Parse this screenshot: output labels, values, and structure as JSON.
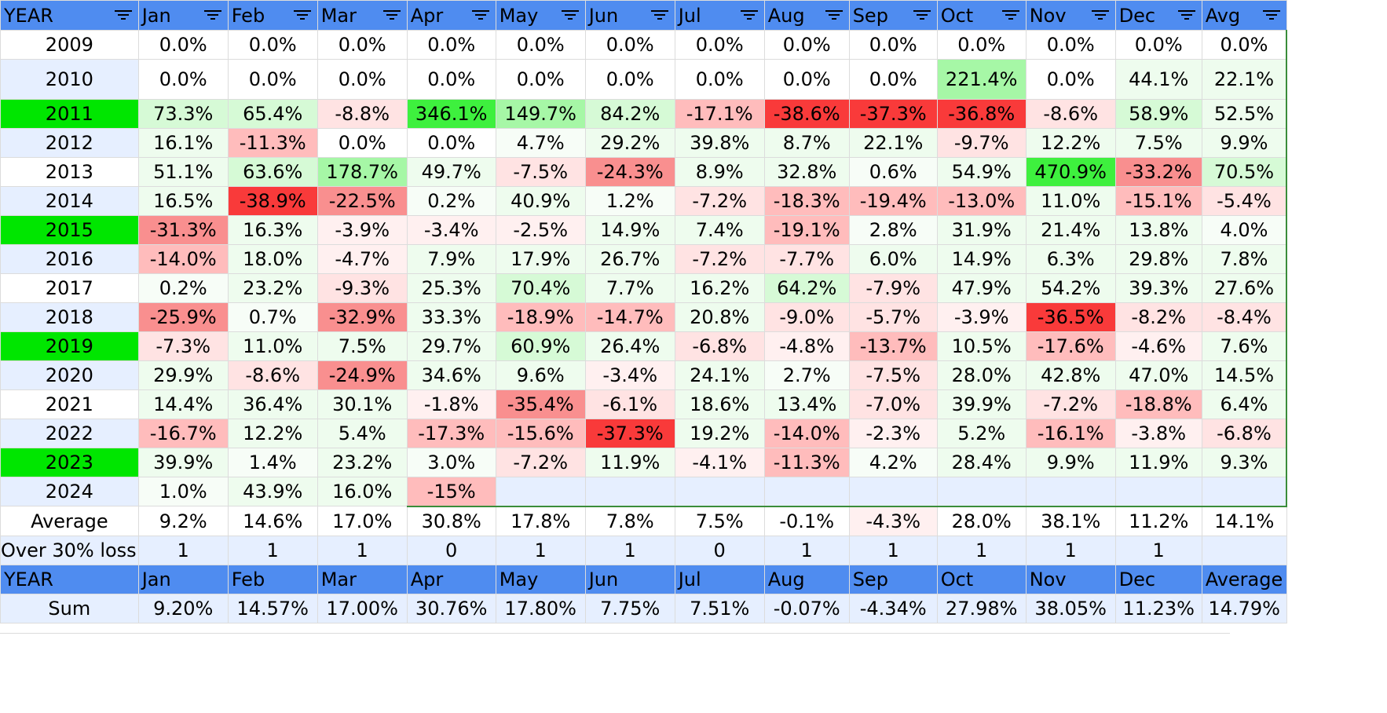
{
  "sheet": {
    "header": [
      "YEAR",
      "Jan",
      "Feb",
      "Mar",
      "Apr",
      "May",
      "Jun",
      "Jul",
      "Aug",
      "Sep",
      "Oct",
      "Nov",
      "Dec",
      "Avg"
    ],
    "rows": [
      {
        "year": "2009",
        "highlight": "none",
        "cells": [
          "0.0%",
          "0.0%",
          "0.0%",
          "0.0%",
          "0.0%",
          "0.0%",
          "0.0%",
          "0.0%",
          "0.0%",
          "0.0%",
          "0.0%",
          "0.0%",
          "0.0%"
        ]
      },
      {
        "year": "2010",
        "highlight": "band",
        "cells": [
          "0.0%",
          "0.0%",
          "0.0%",
          "0.0%",
          "0.0%",
          "0.0%",
          "0.0%",
          "0.0%",
          "0.0%",
          "221.4%",
          "0.0%",
          "44.1%",
          "22.1%"
        ]
      },
      {
        "year": "2011",
        "highlight": "green",
        "cells": [
          "73.3%",
          "65.4%",
          "-8.8%",
          "346.1%",
          "149.7%",
          "84.2%",
          "-17.1%",
          "-38.6%",
          "-37.3%",
          "-36.8%",
          "-8.6%",
          "58.9%",
          "52.5%"
        ]
      },
      {
        "year": "2012",
        "highlight": "band",
        "cells": [
          "16.1%",
          "-11.3%",
          "0.0%",
          "0.0%",
          "4.7%",
          "29.2%",
          "39.8%",
          "8.7%",
          "22.1%",
          "-9.7%",
          "12.2%",
          "7.5%",
          "9.9%"
        ]
      },
      {
        "year": "2013",
        "highlight": "none",
        "cells": [
          "51.1%",
          "63.6%",
          "178.7%",
          "49.7%",
          "-7.5%",
          "-24.3%",
          "8.9%",
          "32.8%",
          "0.6%",
          "54.9%",
          "470.9%",
          "-33.2%",
          "70.5%"
        ]
      },
      {
        "year": "2014",
        "highlight": "band",
        "cells": [
          "16.5%",
          "-38.9%",
          "-22.5%",
          "0.2%",
          "40.9%",
          "1.2%",
          "-7.2%",
          "-18.3%",
          "-19.4%",
          "-13.0%",
          "11.0%",
          "-15.1%",
          "-5.4%"
        ]
      },
      {
        "year": "2015",
        "highlight": "green",
        "cells": [
          "-31.3%",
          "16.3%",
          "-3.9%",
          "-3.4%",
          "-2.5%",
          "14.9%",
          "7.4%",
          "-19.1%",
          "2.8%",
          "31.9%",
          "21.4%",
          "13.8%",
          "4.0%"
        ]
      },
      {
        "year": "2016",
        "highlight": "band",
        "cells": [
          "-14.0%",
          "18.0%",
          "-4.7%",
          "7.9%",
          "17.9%",
          "26.7%",
          "-7.2%",
          "-7.7%",
          "6.0%",
          "14.9%",
          "6.3%",
          "29.8%",
          "7.8%"
        ]
      },
      {
        "year": "2017",
        "highlight": "none",
        "cells": [
          "0.2%",
          "23.2%",
          "-9.3%",
          "25.3%",
          "70.4%",
          "7.7%",
          "16.2%",
          "64.2%",
          "-7.9%",
          "47.9%",
          "54.2%",
          "39.3%",
          "27.6%"
        ]
      },
      {
        "year": "2018",
        "highlight": "band",
        "cells": [
          "-25.9%",
          "0.7%",
          "-32.9%",
          "33.3%",
          "-18.9%",
          "-14.7%",
          "20.8%",
          "-9.0%",
          "-5.7%",
          "-3.9%",
          "-36.5%",
          "-8.2%",
          "-8.4%"
        ]
      },
      {
        "year": "2019",
        "highlight": "green",
        "cells": [
          "-7.3%",
          "11.0%",
          "7.5%",
          "29.7%",
          "60.9%",
          "26.4%",
          "-6.8%",
          "-4.8%",
          "-13.7%",
          "10.5%",
          "-17.6%",
          "-4.6%",
          "7.6%"
        ]
      },
      {
        "year": "2020",
        "highlight": "band",
        "cells": [
          "29.9%",
          "-8.6%",
          "-24.9%",
          "34.6%",
          "9.6%",
          "-3.4%",
          "24.1%",
          "2.7%",
          "-7.5%",
          "28.0%",
          "42.8%",
          "47.0%",
          "14.5%"
        ]
      },
      {
        "year": "2021",
        "highlight": "none",
        "cells": [
          "14.4%",
          "36.4%",
          "30.1%",
          "-1.8%",
          "-35.4%",
          "-6.1%",
          "18.6%",
          "13.4%",
          "-7.0%",
          "39.9%",
          "-7.2%",
          "-18.8%",
          "6.4%"
        ]
      },
      {
        "year": "2022",
        "highlight": "band",
        "cells": [
          "-16.7%",
          "12.2%",
          "5.4%",
          "-17.3%",
          "-15.6%",
          "-37.3%",
          "19.2%",
          "-14.0%",
          "-2.3%",
          "5.2%",
          "-16.1%",
          "-3.8%",
          "-6.8%"
        ]
      },
      {
        "year": "2023",
        "highlight": "green",
        "cells": [
          "39.9%",
          "1.4%",
          "23.2%",
          "3.0%",
          "-7.2%",
          "11.9%",
          "-4.1%",
          "-11.3%",
          "4.2%",
          "28.4%",
          "9.9%",
          "11.9%",
          "9.3%"
        ]
      },
      {
        "year": "2024",
        "highlight": "band",
        "cells": [
          "1.0%",
          "43.9%",
          "16.0%",
          "-15%",
          "",
          "",
          "",
          "",
          "",
          "",
          "",
          "",
          ""
        ]
      }
    ],
    "average_row": {
      "label": "Average",
      "cells": [
        "9.2%",
        "14.6%",
        "17.0%",
        "30.8%",
        "17.8%",
        "7.8%",
        "7.5%",
        "-0.1%",
        "-4.3%",
        "28.0%",
        "38.1%",
        "11.2%",
        "14.1%"
      ]
    },
    "loss_row": {
      "label": "Over 30% loss",
      "cells": [
        "1",
        "1",
        "1",
        "0",
        "1",
        "1",
        "0",
        "1",
        "1",
        "1",
        "1",
        "1",
        ""
      ]
    },
    "header2": [
      "YEAR",
      "Jan",
      "Feb",
      "Mar",
      "Apr",
      "May",
      "Jun",
      "Jul",
      "Aug",
      "Sep",
      "Oct",
      "Nov",
      "Dec",
      "Average"
    ],
    "sum_row": {
      "label": "Sum",
      "cells": [
        "9.20%",
        "14.57%",
        "17.00%",
        "30.76%",
        "17.80%",
        "7.75%",
        "7.51%",
        "-0.07%",
        "-4.34%",
        "27.98%",
        "38.05%",
        "11.23%",
        "14.79%"
      ]
    }
  },
  "colors": {
    "header_bg": "#4f8cf0",
    "year_band": "#e6efff",
    "year_green": "#00e600",
    "pos_light": "#eefcee",
    "pos_mid": "#d6fad6",
    "pos_strong": "#a6f7a6",
    "pos_max": "#3ef03e",
    "neg_light": "#ffe3e3",
    "neg_mid": "#ffbcbc",
    "neg_strong": "#f98f8f",
    "neg_max": "#f93a3a"
  }
}
